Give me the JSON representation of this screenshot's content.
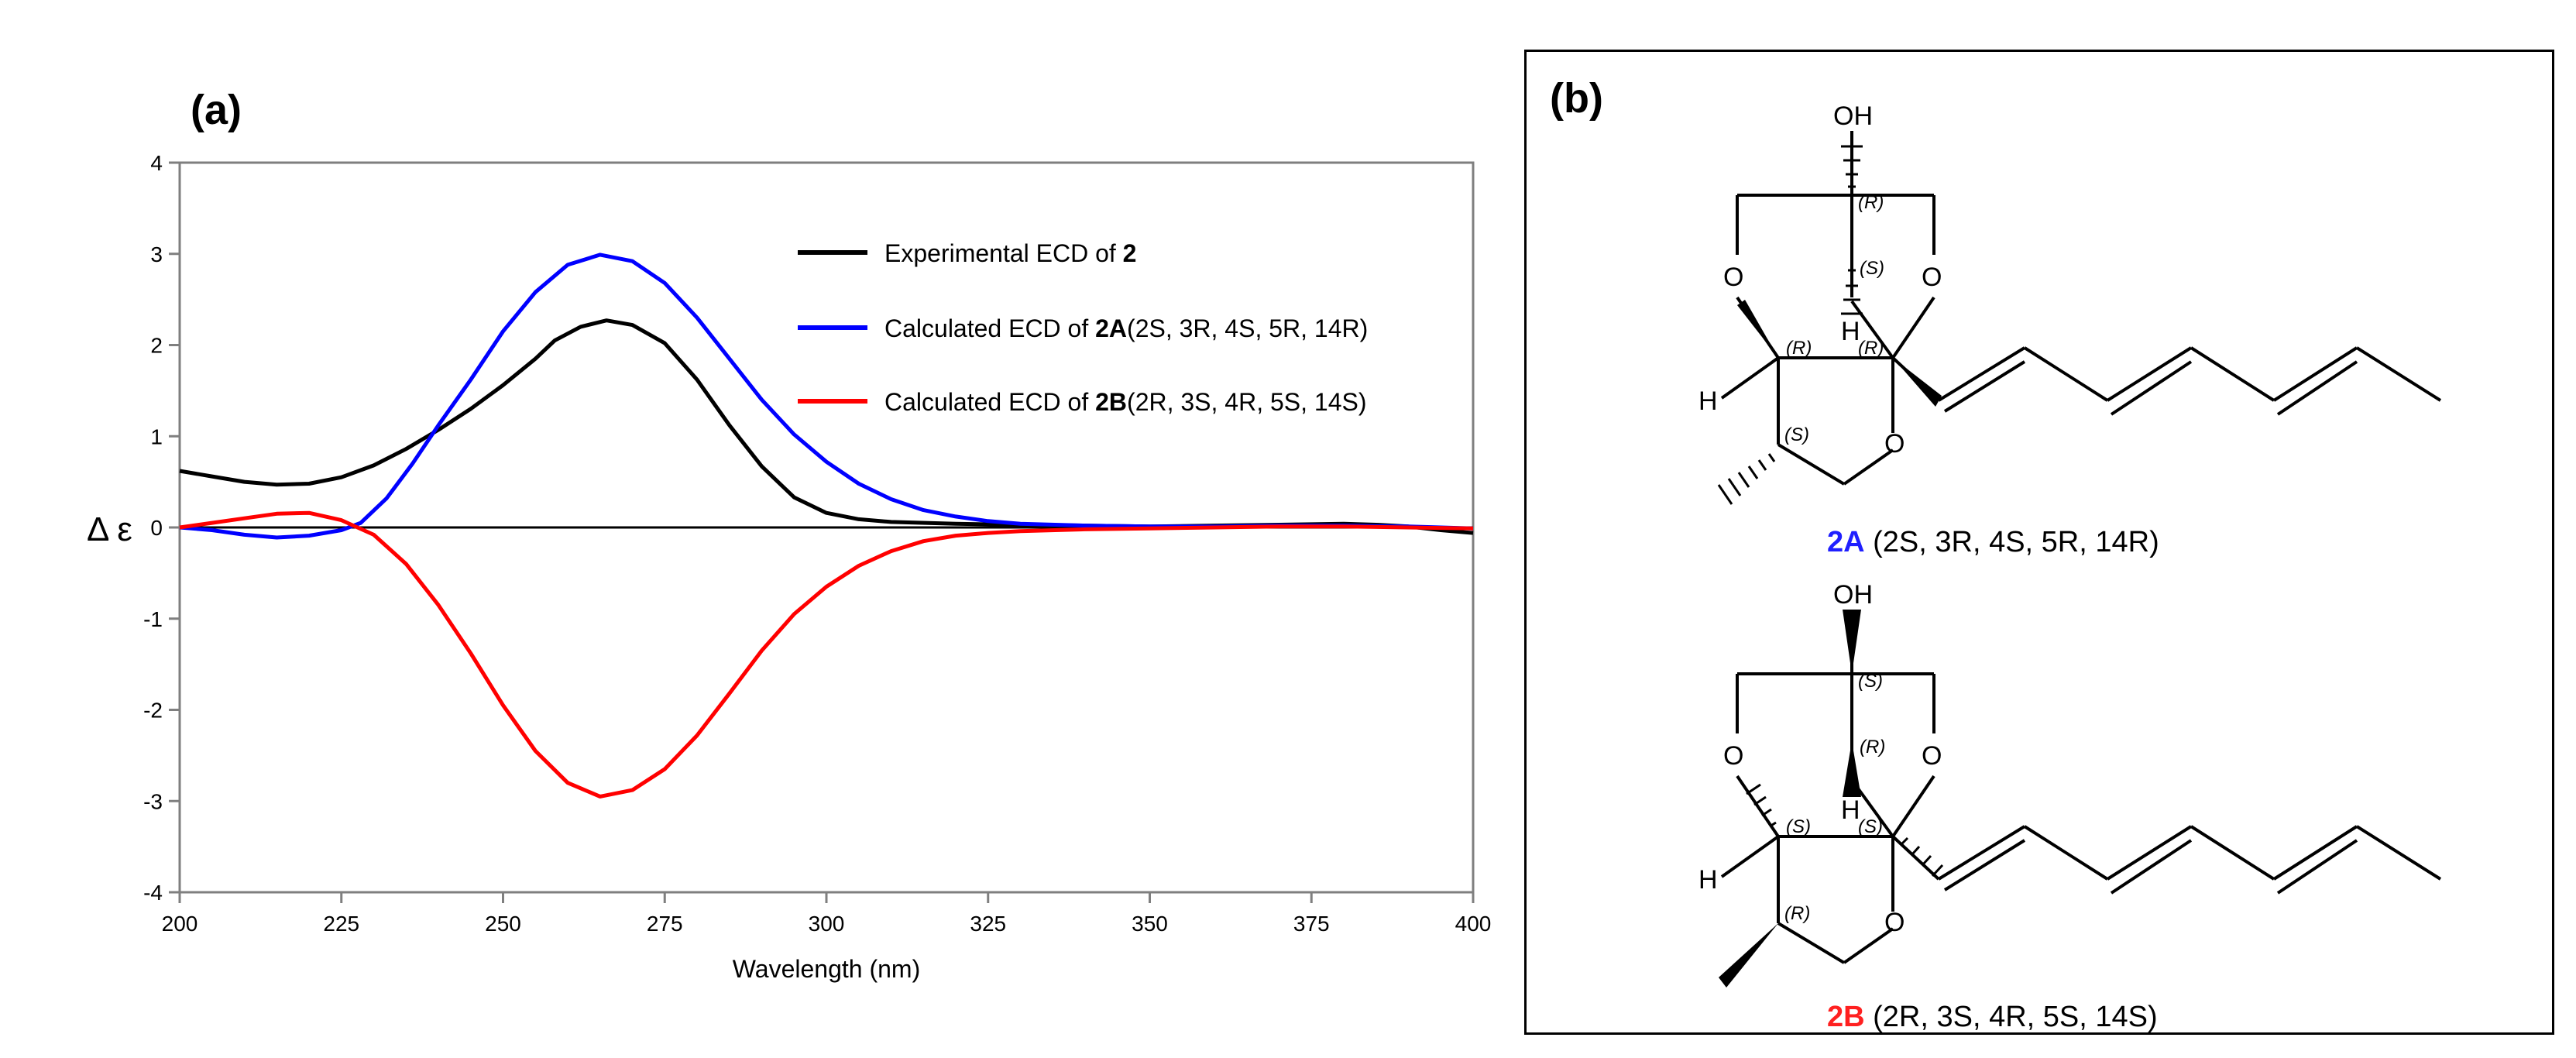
{
  "panel_a": {
    "label": "(a)",
    "chart_data": {
      "type": "line",
      "xlabel": "Wavelength (nm)",
      "ylabel": "Δ ε",
      "xlim": [
        200,
        400
      ],
      "ylim": [
        -4,
        4
      ],
      "xticks": [
        "200",
        "225",
        "250",
        "275",
        "300",
        "325",
        "350",
        "375",
        "400"
      ],
      "yticks": [
        "4",
        "3",
        "2",
        "1",
        "0",
        "-1",
        "-2",
        "-3",
        "-4"
      ],
      "grid": false,
      "legend_position": "top-right",
      "series": [
        {
          "legend_prefix": "Experimental ECD of ",
          "legend_bold": "2",
          "legend_suffix": "",
          "color": "#000000",
          "points": [
            [
              200,
              0.62
            ],
            [
              205,
              0.56
            ],
            [
              210,
              0.5
            ],
            [
              215,
              0.47
            ],
            [
              220,
              0.48
            ],
            [
              225,
              0.55
            ],
            [
              230,
              0.68
            ],
            [
              235,
              0.86
            ],
            [
              240,
              1.07
            ],
            [
              245,
              1.3
            ],
            [
              250,
              1.56
            ],
            [
              255,
              1.85
            ],
            [
              258,
              2.05
            ],
            [
              262,
              2.2
            ],
            [
              266,
              2.27
            ],
            [
              270,
              2.22
            ],
            [
              275,
              2.02
            ],
            [
              280,
              1.62
            ],
            [
              285,
              1.12
            ],
            [
              290,
              0.67
            ],
            [
              295,
              0.33
            ],
            [
              300,
              0.16
            ],
            [
              305,
              0.09
            ],
            [
              310,
              0.06
            ],
            [
              320,
              0.04
            ],
            [
              330,
              0.03
            ],
            [
              340,
              0.02
            ],
            [
              350,
              0.01
            ],
            [
              360,
              0.02
            ],
            [
              370,
              0.03
            ],
            [
              380,
              0.04
            ],
            [
              385,
              0.03
            ],
            [
              390,
              0.01
            ],
            [
              395,
              -0.03
            ],
            [
              400,
              -0.06
            ]
          ]
        },
        {
          "legend_prefix": "Calculated ECD of ",
          "legend_bold": "2A",
          "legend_suffix": "(2S, 3R, 4S, 5R, 14R)",
          "color": "#0000ff",
          "points": [
            [
              200,
              0.0
            ],
            [
              205,
              -0.03
            ],
            [
              210,
              -0.08
            ],
            [
              215,
              -0.11
            ],
            [
              220,
              -0.09
            ],
            [
              225,
              -0.03
            ],
            [
              228,
              0.05
            ],
            [
              232,
              0.32
            ],
            [
              236,
              0.7
            ],
            [
              240,
              1.12
            ],
            [
              245,
              1.62
            ],
            [
              250,
              2.15
            ],
            [
              255,
              2.58
            ],
            [
              260,
              2.88
            ],
            [
              265,
              2.99
            ],
            [
              270,
              2.92
            ],
            [
              275,
              2.68
            ],
            [
              280,
              2.3
            ],
            [
              285,
              1.85
            ],
            [
              290,
              1.4
            ],
            [
              295,
              1.02
            ],
            [
              300,
              0.72
            ],
            [
              305,
              0.48
            ],
            [
              310,
              0.31
            ],
            [
              315,
              0.19
            ],
            [
              320,
              0.12
            ],
            [
              325,
              0.07
            ],
            [
              330,
              0.04
            ],
            [
              340,
              0.02
            ],
            [
              350,
              0.01
            ],
            [
              360,
              0.01
            ],
            [
              370,
              0.02
            ],
            [
              380,
              0.02
            ],
            [
              390,
              0.01
            ],
            [
              400,
              -0.01
            ]
          ]
        },
        {
          "legend_prefix": "Calculated ECD of ",
          "legend_bold": "2B",
          "legend_suffix": "(2R, 3S, 4R, 5S, 14S)",
          "color": "#ff0000",
          "points": [
            [
              200,
              0.0
            ],
            [
              205,
              0.05
            ],
            [
              210,
              0.1
            ],
            [
              215,
              0.15
            ],
            [
              220,
              0.16
            ],
            [
              225,
              0.08
            ],
            [
              230,
              -0.08
            ],
            [
              235,
              -0.4
            ],
            [
              240,
              -0.85
            ],
            [
              245,
              -1.38
            ],
            [
              250,
              -1.95
            ],
            [
              255,
              -2.45
            ],
            [
              260,
              -2.8
            ],
            [
              265,
              -2.95
            ],
            [
              270,
              -2.88
            ],
            [
              275,
              -2.65
            ],
            [
              280,
              -2.28
            ],
            [
              285,
              -1.82
            ],
            [
              290,
              -1.35
            ],
            [
              295,
              -0.95
            ],
            [
              300,
              -0.65
            ],
            [
              305,
              -0.42
            ],
            [
              310,
              -0.26
            ],
            [
              315,
              -0.15
            ],
            [
              320,
              -0.09
            ],
            [
              325,
              -0.06
            ],
            [
              330,
              -0.04
            ],
            [
              340,
              -0.02
            ],
            [
              350,
              -0.01
            ],
            [
              360,
              0.0
            ],
            [
              370,
              0.01
            ],
            [
              380,
              0.01
            ],
            [
              390,
              0.0
            ],
            [
              400,
              -0.01
            ]
          ]
        }
      ]
    }
  },
  "panel_b": {
    "label": "(b)",
    "structures": [
      {
        "compound": "2A",
        "config": " (2S, 3R, 4S, 5R, 14R)",
        "compound_color": "#1f1fff",
        "atoms": {
          "oh": "OH",
          "o_left": "O",
          "o_right": "O",
          "o_ring": "O",
          "h_left": "H",
          "h_mid": "H"
        },
        "stereo": {
          "top": "(R)",
          "center": "(S)",
          "left": "(R)",
          "right": "(R)",
          "bottom": "(S)"
        }
      },
      {
        "compound": "2B",
        "config": " (2R, 3S, 4R, 5S, 14S)",
        "compound_color": "#ff2020",
        "atoms": {
          "oh": "OH",
          "o_left": "O",
          "o_right": "O",
          "o_ring": "O",
          "h_left": "H",
          "h_mid": "H"
        },
        "stereo": {
          "top": "(S)",
          "center": "(R)",
          "left": "(S)",
          "right": "(S)",
          "bottom": "(R)"
        }
      }
    ]
  }
}
